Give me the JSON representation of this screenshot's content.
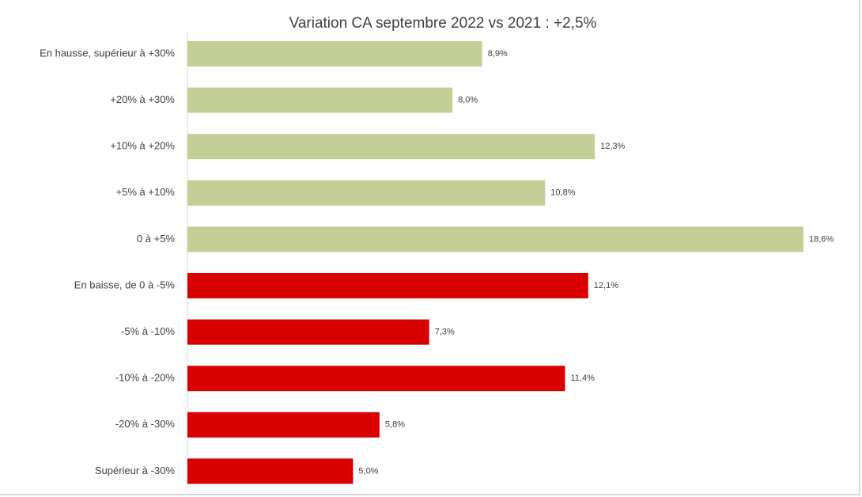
{
  "chart_data": {
    "type": "bar",
    "orientation": "horizontal",
    "title": "Variation CA septembre 2022 vs 2021 : +2,5%",
    "categories": [
      "En hausse, supérieur à +30%",
      "+20% à +30%",
      "+10% à +20%",
      "+5% à +10%",
      "0 à +5%",
      "En baisse, de 0 à -5%",
      "-5% à -10%",
      "-10% à -20%",
      "-20% à -30%",
      "Supérieur à -30%"
    ],
    "values": [
      8.9,
      8.0,
      12.3,
      10.8,
      18.6,
      12.1,
      7.3,
      11.4,
      5.8,
      5.0
    ],
    "value_labels": [
      "8,9%",
      "8,0%",
      "12,3%",
      "10,8%",
      "18,6%",
      "12,1%",
      "7,3%",
      "11,4%",
      "5,8%",
      "5,0%"
    ],
    "bar_colors": [
      "#c4cf97",
      "#c4cf97",
      "#c4cf97",
      "#c4cf97",
      "#c4cf97",
      "#d90000",
      "#d90000",
      "#d90000",
      "#d90000",
      "#d90000"
    ],
    "xlim": [
      0,
      18.6
    ],
    "grid": false,
    "legend": "none"
  }
}
